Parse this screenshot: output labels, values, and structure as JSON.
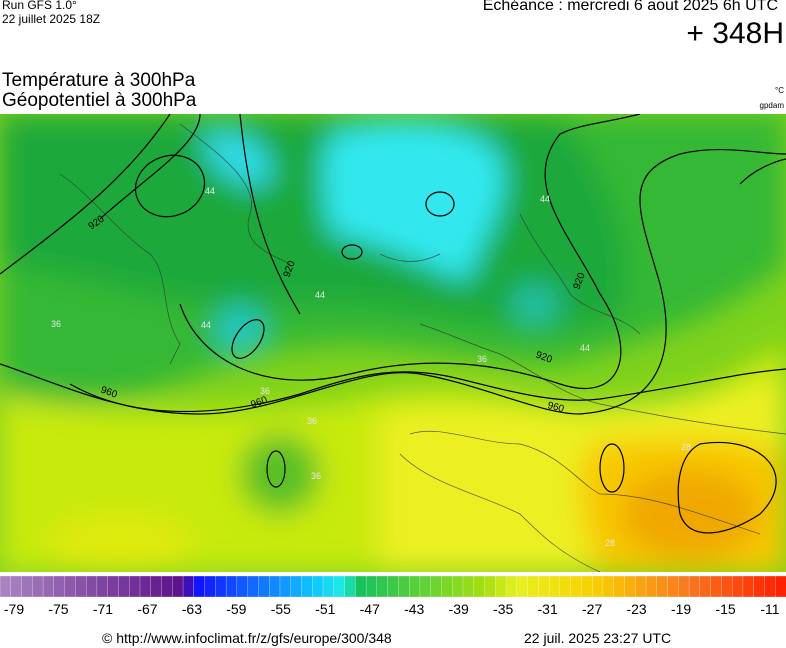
{
  "header": {
    "run": "Run GFS 1.0°",
    "run_date": "22 juillet 2025 18Z",
    "valid": "Echéance : mercredi 6 aout 2025 6h UTC",
    "lead": "+ 348H"
  },
  "titles": {
    "line1": "Température à 300hPa",
    "line2": "Géopotentiel à 300hPa",
    "unit1": "°C",
    "unit2": "gpdam"
  },
  "map": {
    "geopotential_labels": [
      "920",
      "920",
      "920",
      "920",
      "960",
      "960",
      "960"
    ],
    "temperature_labels": [
      "44",
      "44",
      "44",
      "44",
      "44",
      "36",
      "36",
      "36",
      "36",
      "36",
      "28",
      "28"
    ]
  },
  "colorbar": {
    "ticks": [
      -79,
      -75,
      -71,
      -67,
      -63,
      -59,
      -55,
      -51,
      -47,
      -43,
      -39,
      -35,
      -31,
      -27,
      -23,
      -19,
      -15,
      -11
    ]
  },
  "footer": {
    "url": "© http://www.infoclimat.fr/z/gfs/europe/300/348",
    "generated": "22 juil. 2025 23:27 UTC"
  }
}
